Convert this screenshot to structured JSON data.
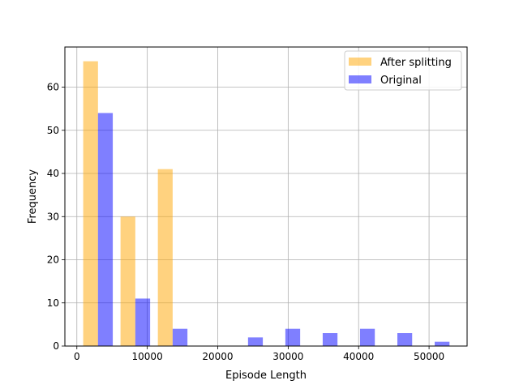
{
  "chart_data": {
    "type": "bar",
    "title": "",
    "xlabel": "Episode Length",
    "ylabel": "Frequency",
    "xlim": [
      -1700,
      55400
    ],
    "ylim": [
      0,
      69.3
    ],
    "grid": true,
    "legend_position": "top-right",
    "x_ticks": [
      0,
      10000,
      20000,
      30000,
      40000,
      50000
    ],
    "y_ticks": [
      0,
      10,
      20,
      30,
      40,
      50,
      60
    ],
    "series": [
      {
        "name": "After splitting",
        "color": "#FFA500",
        "opacity": 0.5,
        "bars": [
          {
            "x0": 900,
            "x1": 3000,
            "value": 66
          },
          {
            "x0": 6200,
            "x1": 8300,
            "value": 30
          },
          {
            "x0": 11500,
            "x1": 13600,
            "value": 41
          }
        ]
      },
      {
        "name": "Original",
        "color": "#0000FF",
        "opacity": 0.5,
        "bars": [
          {
            "x0": 3000,
            "x1": 5100,
            "value": 54
          },
          {
            "x0": 8300,
            "x1": 10400,
            "value": 11
          },
          {
            "x0": 13600,
            "x1": 15700,
            "value": 4
          },
          {
            "x0": 24300,
            "x1": 26400,
            "value": 2
          },
          {
            "x0": 29600,
            "x1": 31700,
            "value": 4
          },
          {
            "x0": 34900,
            "x1": 37000,
            "value": 3
          },
          {
            "x0": 40200,
            "x1": 42300,
            "value": 4
          },
          {
            "x0": 45500,
            "x1": 47600,
            "value": 3
          },
          {
            "x0": 50800,
            "x1": 52900,
            "value": 1
          }
        ]
      }
    ]
  }
}
